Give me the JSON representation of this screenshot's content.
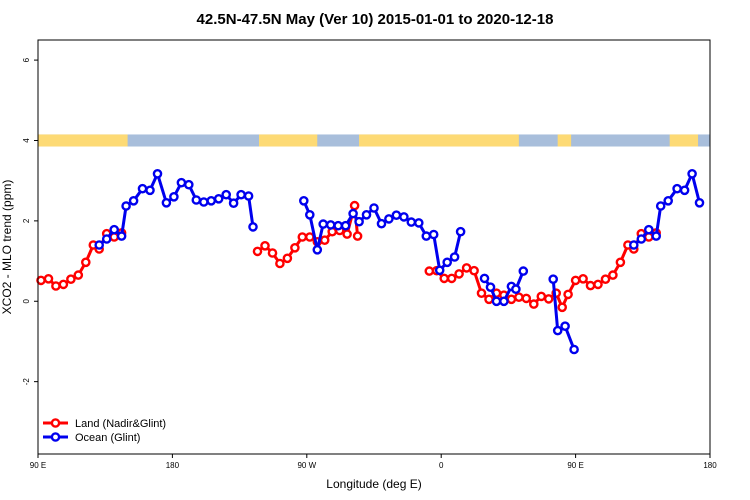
{
  "chart_data": {
    "type": "line",
    "title": "42.5N-47.5N May (Ver 10)   2015-01-01 to 2020-12-18",
    "xlabel": "Longitude (deg E)",
    "ylabel": "XCO2 - MLO trend (ppm)",
    "x_ticks": [
      {
        "value": 90,
        "label": "90 E"
      },
      {
        "value": 180,
        "label": "180"
      },
      {
        "value": 270,
        "label": "90 W"
      },
      {
        "value": 360,
        "label": "0"
      },
      {
        "value": 450,
        "label": "90 E"
      },
      {
        "value": 540,
        "label": "180"
      }
    ],
    "y_ticks": [
      -2,
      0,
      2,
      4,
      6
    ],
    "xlim": [
      90,
      540
    ],
    "ylim": [
      -3.8,
      6.5
    ],
    "grid": false,
    "legend_position": "bottom-left",
    "land_mask_band": {
      "y_range": [
        3.85,
        4.15
      ],
      "colors": {
        "land": "#FDDA75",
        "ocean": "#A8BEDB"
      },
      "land_segments": [
        [
          90,
          150
        ],
        [
          238,
          277
        ],
        [
          305,
          412
        ],
        [
          438,
          447
        ],
        [
          513,
          532
        ]
      ]
    },
    "series": [
      {
        "name": "Land (Nadir&Glint)",
        "color": "#FF0000",
        "segments": [
          [
            [
              92,
              0.52
            ],
            [
              97,
              0.56
            ],
            [
              102,
              0.38
            ],
            [
              107,
              0.42
            ],
            [
              112,
              0.55
            ],
            [
              117,
              0.65
            ],
            [
              122,
              0.97
            ],
            [
              127,
              1.4
            ],
            [
              131,
              1.3
            ],
            [
              136,
              1.68
            ],
            [
              141,
              1.6
            ],
            [
              146,
              1.7
            ]
          ],
          [
            [
              237,
              1.24
            ],
            [
              242,
              1.38
            ],
            [
              247,
              1.2
            ],
            [
              252,
              0.94
            ],
            [
              257,
              1.07
            ],
            [
              262,
              1.33
            ],
            [
              267,
              1.6
            ],
            [
              272,
              1.6
            ],
            [
              277,
              1.48
            ],
            [
              282,
              1.52
            ],
            [
              287,
              1.73
            ],
            [
              292,
              1.76
            ],
            [
              297,
              1.67
            ],
            [
              302,
              2.38
            ],
            [
              304,
              1.62
            ]
          ],
          [
            [
              352,
              0.75
            ],
            [
              357,
              0.76
            ],
            [
              362,
              0.57
            ],
            [
              367,
              0.57
            ],
            [
              372,
              0.68
            ],
            [
              377,
              0.83
            ],
            [
              382,
              0.76
            ],
            [
              387,
              0.2
            ],
            [
              392,
              0.05
            ],
            [
              397,
              0.2
            ],
            [
              402,
              0.15
            ],
            [
              407,
              0.05
            ],
            [
              412,
              0.1
            ],
            [
              417,
              0.07
            ],
            [
              422,
              -0.07
            ],
            [
              427,
              0.12
            ],
            [
              432,
              0.06
            ],
            [
              437,
              0.2
            ],
            [
              441,
              -0.15
            ],
            [
              445,
              0.17
            ],
            [
              450,
              0.52
            ],
            [
              455,
              0.56
            ],
            [
              460,
              0.39
            ],
            [
              465,
              0.42
            ],
            [
              470,
              0.55
            ],
            [
              475,
              0.65
            ],
            [
              480,
              0.97
            ],
            [
              485,
              1.4
            ],
            [
              489,
              1.3
            ],
            [
              494,
              1.68
            ],
            [
              499,
              1.6
            ],
            [
              504,
              1.7
            ]
          ]
        ]
      },
      {
        "name": "Ocean (Glint)",
        "color": "#0000EE",
        "segments": [
          [
            [
              131,
              1.4
            ],
            [
              136,
              1.55
            ],
            [
              141,
              1.78
            ],
            [
              146,
              1.62
            ],
            [
              149,
              2.37
            ],
            [
              154,
              2.5
            ],
            [
              160,
              2.8
            ],
            [
              165,
              2.76
            ],
            [
              170,
              3.17
            ],
            [
              176,
              2.45
            ],
            [
              181,
              2.6
            ],
            [
              186,
              2.95
            ],
            [
              191,
              2.9
            ],
            [
              196,
              2.52
            ],
            [
              201,
              2.47
            ],
            [
              206,
              2.5
            ],
            [
              211,
              2.55
            ],
            [
              216,
              2.65
            ],
            [
              221,
              2.44
            ],
            [
              226,
              2.65
            ],
            [
              231,
              2.62
            ],
            [
              234,
              1.85
            ]
          ],
          [
            [
              268,
              2.5
            ],
            [
              272,
              2.15
            ],
            [
              277,
              1.28
            ],
            [
              281,
              1.92
            ],
            [
              286,
              1.9
            ],
            [
              291,
              1.88
            ],
            [
              296,
              1.88
            ],
            [
              301,
              2.18
            ],
            [
              305,
              1.98
            ],
            [
              310,
              2.15
            ],
            [
              315,
              2.32
            ],
            [
              320,
              1.93
            ],
            [
              325,
              2.05
            ],
            [
              330,
              2.14
            ],
            [
              335,
              2.1
            ],
            [
              340,
              1.97
            ],
            [
              345,
              1.95
            ],
            [
              350,
              1.62
            ],
            [
              355,
              1.66
            ],
            [
              359,
              0.77
            ],
            [
              364,
              0.97
            ],
            [
              369,
              1.1
            ],
            [
              373,
              1.73
            ]
          ],
          [
            [
              389,
              0.57
            ],
            [
              393,
              0.35
            ],
            [
              397,
              0.0
            ],
            [
              402,
              0.0
            ],
            [
              407,
              0.37
            ],
            [
              410,
              0.3
            ],
            [
              415,
              0.75
            ]
          ],
          [
            [
              435,
              0.55
            ],
            [
              438,
              -0.73
            ],
            [
              443,
              -0.62
            ],
            [
              449,
              -1.2
            ]
          ],
          [
            [
              489,
              1.4
            ],
            [
              494,
              1.55
            ],
            [
              499,
              1.78
            ],
            [
              504,
              1.62
            ],
            [
              507,
              2.37
            ],
            [
              512,
              2.5
            ],
            [
              518,
              2.8
            ],
            [
              523,
              2.76
            ],
            [
              528,
              3.17
            ],
            [
              533,
              2.45
            ]
          ]
        ]
      }
    ]
  }
}
